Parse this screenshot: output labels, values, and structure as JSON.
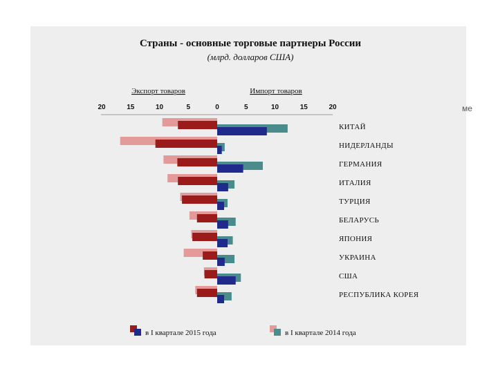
{
  "stray_text": "ме",
  "chart_data": {
    "type": "bar",
    "orientation": "horizontal-butterfly",
    "title": "Страны - основные торговые партнеры России",
    "subtitle": "(млрд. долларов США)",
    "left_header": "Экспорт товаров",
    "right_header": "Импорт товаров",
    "tick_labels": [
      "20",
      "15",
      "10",
      "5",
      "0",
      "5",
      "10",
      "15",
      "20"
    ],
    "xlim": [
      -20,
      20
    ],
    "categories": [
      "КИТАЙ",
      "НИДЕРЛАНДЫ",
      "ГЕРМАНИЯ",
      "ИТАЛИЯ",
      "ТУРЦИЯ",
      "БЕЛАРУСЬ",
      "ЯПОНИЯ",
      "УКРАИНА",
      "США",
      "РЕСПУБЛИКА КОРЕЯ"
    ],
    "series": [
      {
        "name": "в I квартале 2015 года",
        "export_values": [
          6.8,
          10.7,
          6.9,
          6.8,
          6.1,
          3.5,
          4.3,
          2.5,
          2.2,
          3.5
        ],
        "import_values": [
          8.6,
          0.8,
          4.5,
          1.9,
          1.2,
          1.9,
          1.8,
          1.3,
          3.2,
          1.2
        ],
        "export_color": "#9b1b1b",
        "import_color": "#1f2a8a"
      },
      {
        "name": "в I квартале 2014 года",
        "export_values": [
          9.5,
          16.8,
          9.3,
          8.6,
          6.4,
          4.8,
          4.5,
          5.8,
          2.3,
          3.8
        ],
        "import_values": [
          12.2,
          1.3,
          7.9,
          3.0,
          1.8,
          3.2,
          2.7,
          3.0,
          4.1,
          2.5
        ],
        "export_color": "#e59a9a",
        "import_color": "#4a8c8c"
      }
    ],
    "grid": false,
    "legend_position": "bottom"
  }
}
